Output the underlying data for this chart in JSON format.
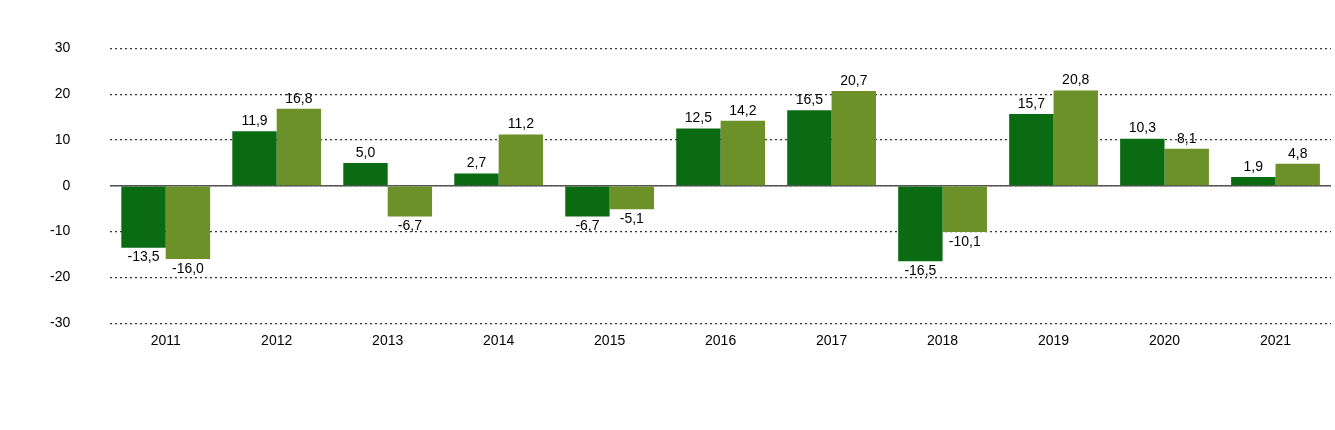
{
  "chart_data": {
    "type": "bar",
    "categories": [
      "2011",
      "2012",
      "2013",
      "2014",
      "2015",
      "2016",
      "2017",
      "2018",
      "2019",
      "2020",
      "2021"
    ],
    "series": [
      {
        "color": "#0b6b12",
        "values": [
          -13.5,
          11.9,
          5.0,
          2.7,
          -6.7,
          12.5,
          16.5,
          -16.5,
          15.7,
          10.3,
          1.9
        ],
        "value_labels": [
          "-13,5",
          "11,9",
          "5,0",
          "2,7",
          "-6,7",
          "12,5",
          "16,5",
          "-16,5",
          "15,7",
          "10,3",
          "1,9"
        ]
      },
      {
        "color": "#6b9128",
        "values": [
          -16.0,
          16.8,
          -6.7,
          11.2,
          -5.1,
          14.2,
          20.7,
          -10.1,
          20.8,
          8.1,
          4.8
        ],
        "value_labels": [
          "-16,0",
          "16,8",
          "-6,7",
          "11,2",
          "-5,1",
          "14,2",
          "20,7",
          "-10,1",
          "20,8",
          "8,1",
          "4,8"
        ]
      }
    ],
    "ylim": [
      -30,
      30
    ],
    "yticks": [
      -30,
      -20,
      -10,
      0,
      10,
      20,
      30
    ],
    "grid": "y",
    "legend": false
  }
}
